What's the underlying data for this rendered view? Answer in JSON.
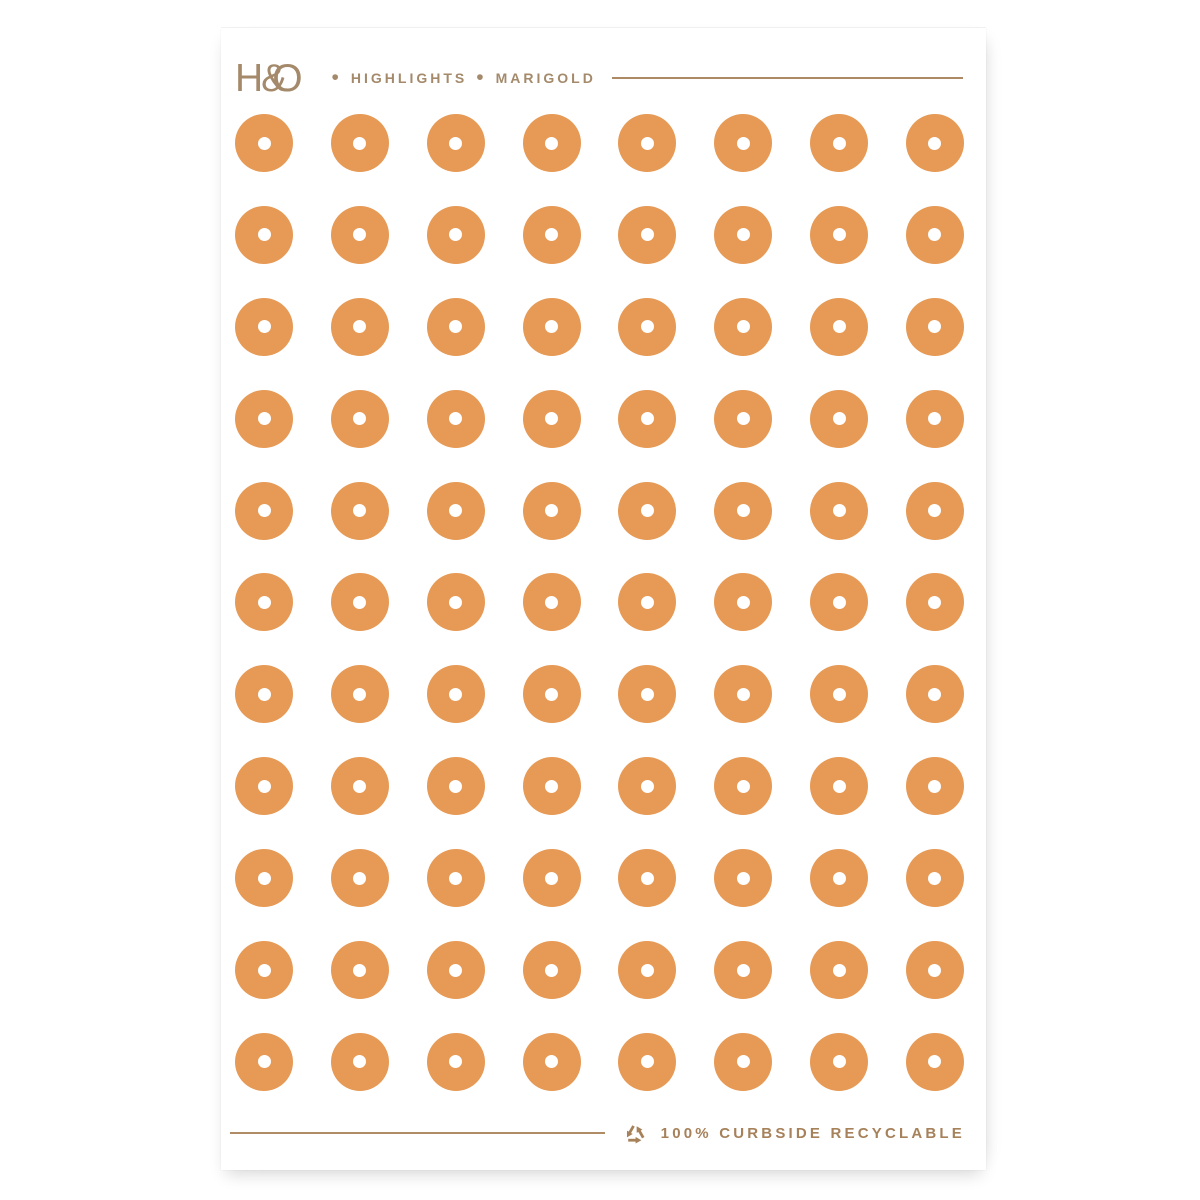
{
  "page": {
    "background": "#FFFFFF"
  },
  "header": {
    "logo": {
      "h": "H",
      "amp": "&",
      "o": "O"
    },
    "bullet": "•",
    "collection": "HIGHLIGHTS",
    "colorway": "MARIGOLD",
    "text_color": "#A48A6B",
    "rule_color": "#AD8A64"
  },
  "sheet": {
    "background": "#FFFFFF",
    "dots": {
      "rows": 11,
      "cols": 8,
      "color": "#E69A55",
      "hole_color": "#FFFFFF"
    }
  },
  "footer": {
    "recycle_icon": "recycle-symbol",
    "label": "100% CURBSIDE RECYCLABLE",
    "text_color": "#A6815A",
    "rule_color": "#B08C66"
  }
}
